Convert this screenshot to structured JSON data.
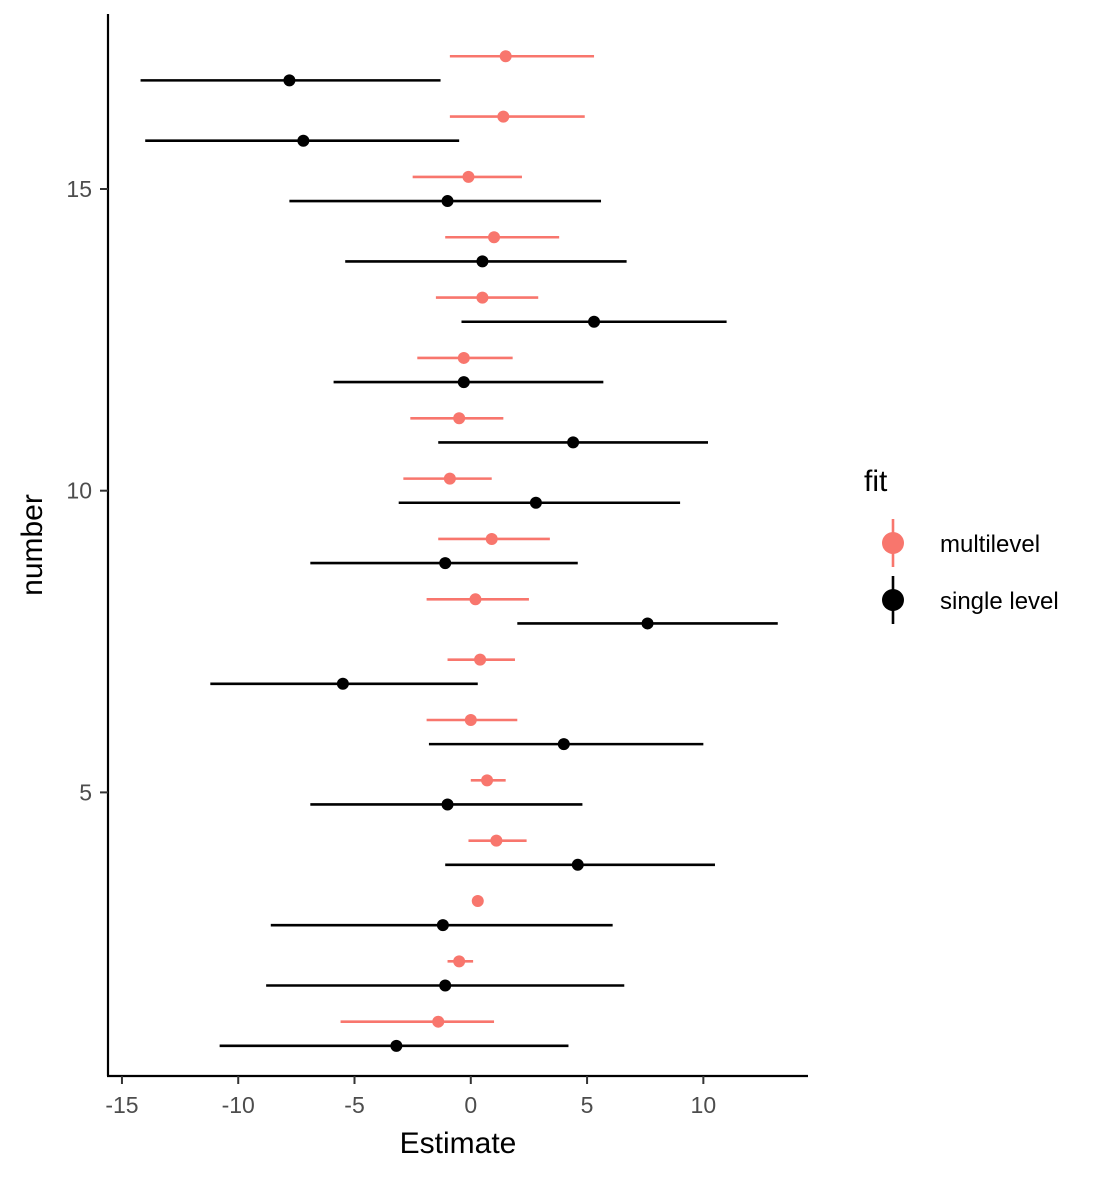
{
  "chart_data": {
    "type": "scatter",
    "xlabel": "Estimate",
    "ylabel": "number",
    "xlim": [
      -15.6,
      14.5
    ],
    "ylim": [
      0.3,
      17.9
    ],
    "x_ticks": [
      -15,
      -10,
      -5,
      0,
      5,
      10
    ],
    "x_tick_labels": [
      "-15",
      "-10",
      "-5",
      "0",
      "5",
      "10"
    ],
    "y_ticks": [
      5,
      10,
      15
    ],
    "y_tick_labels": [
      "5",
      "10",
      "15"
    ],
    "grid": false,
    "legend": {
      "title": "fit",
      "position": "right",
      "entries": [
        {
          "label": "multilevel",
          "color": "#F8766D"
        },
        {
          "label": "single level",
          "color": "#000000"
        }
      ]
    },
    "offset": 0.2,
    "series": [
      {
        "name": "multilevel",
        "color": "#F8766D",
        "points": [
          {
            "number": 1,
            "estimate": -1.4,
            "lower": -5.6,
            "upper": 1.0
          },
          {
            "number": 2,
            "estimate": -0.5,
            "lower": -1.0,
            "upper": 0.1
          },
          {
            "number": 3,
            "estimate": 0.3,
            "lower": 0.2,
            "upper": 0.4
          },
          {
            "number": 4,
            "estimate": 1.1,
            "lower": -0.1,
            "upper": 2.4
          },
          {
            "number": 5,
            "estimate": 0.7,
            "lower": 0.0,
            "upper": 1.5
          },
          {
            "number": 6,
            "estimate": 0.0,
            "lower": -1.9,
            "upper": 2.0
          },
          {
            "number": 7,
            "estimate": 0.4,
            "lower": -1.0,
            "upper": 1.9
          },
          {
            "number": 8,
            "estimate": 0.2,
            "lower": -1.9,
            "upper": 2.5
          },
          {
            "number": 9,
            "estimate": 0.9,
            "lower": -1.4,
            "upper": 3.4
          },
          {
            "number": 10,
            "estimate": -0.9,
            "lower": -2.9,
            "upper": 0.9
          },
          {
            "number": 11,
            "estimate": -0.5,
            "lower": -2.6,
            "upper": 1.4
          },
          {
            "number": 12,
            "estimate": -0.3,
            "lower": -2.3,
            "upper": 1.8
          },
          {
            "number": 13,
            "estimate": 0.5,
            "lower": -1.5,
            "upper": 2.9
          },
          {
            "number": 14,
            "estimate": 1.0,
            "lower": -1.1,
            "upper": 3.8
          },
          {
            "number": 15,
            "estimate": -0.1,
            "lower": -2.5,
            "upper": 2.2
          },
          {
            "number": 16,
            "estimate": 1.4,
            "lower": -0.9,
            "upper": 4.9
          },
          {
            "number": 17,
            "estimate": 1.5,
            "lower": -0.9,
            "upper": 5.3
          }
        ]
      },
      {
        "name": "single level",
        "color": "#000000",
        "points": [
          {
            "number": 1,
            "estimate": -3.2,
            "lower": -10.8,
            "upper": 4.2
          },
          {
            "number": 2,
            "estimate": -1.1,
            "lower": -8.8,
            "upper": 6.6
          },
          {
            "number": 3,
            "estimate": -1.2,
            "lower": -8.6,
            "upper": 6.1
          },
          {
            "number": 4,
            "estimate": 4.6,
            "lower": -1.1,
            "upper": 10.5
          },
          {
            "number": 5,
            "estimate": -1.0,
            "lower": -6.9,
            "upper": 4.8
          },
          {
            "number": 6,
            "estimate": 4.0,
            "lower": -1.8,
            "upper": 10.0
          },
          {
            "number": 7,
            "estimate": -5.5,
            "lower": -11.2,
            "upper": 0.3
          },
          {
            "number": 8,
            "estimate": 7.6,
            "lower": 2.0,
            "upper": 13.2
          },
          {
            "number": 9,
            "estimate": -1.1,
            "lower": -6.9,
            "upper": 4.6
          },
          {
            "number": 10,
            "estimate": 2.8,
            "lower": -3.1,
            "upper": 9.0
          },
          {
            "number": 11,
            "estimate": 4.4,
            "lower": -1.4,
            "upper": 10.2
          },
          {
            "number": 12,
            "estimate": -0.3,
            "lower": -5.9,
            "upper": 5.7
          },
          {
            "number": 13,
            "estimate": 5.3,
            "lower": -0.4,
            "upper": 11.0
          },
          {
            "number": 14,
            "estimate": 0.5,
            "lower": -5.4,
            "upper": 6.7
          },
          {
            "number": 15,
            "estimate": -1.0,
            "lower": -7.8,
            "upper": 5.6
          },
          {
            "number": 16,
            "estimate": -7.2,
            "lower": -14.0,
            "upper": -0.5
          },
          {
            "number": 17,
            "estimate": -7.8,
            "lower": -14.2,
            "upper": -1.3
          }
        ]
      }
    ]
  }
}
